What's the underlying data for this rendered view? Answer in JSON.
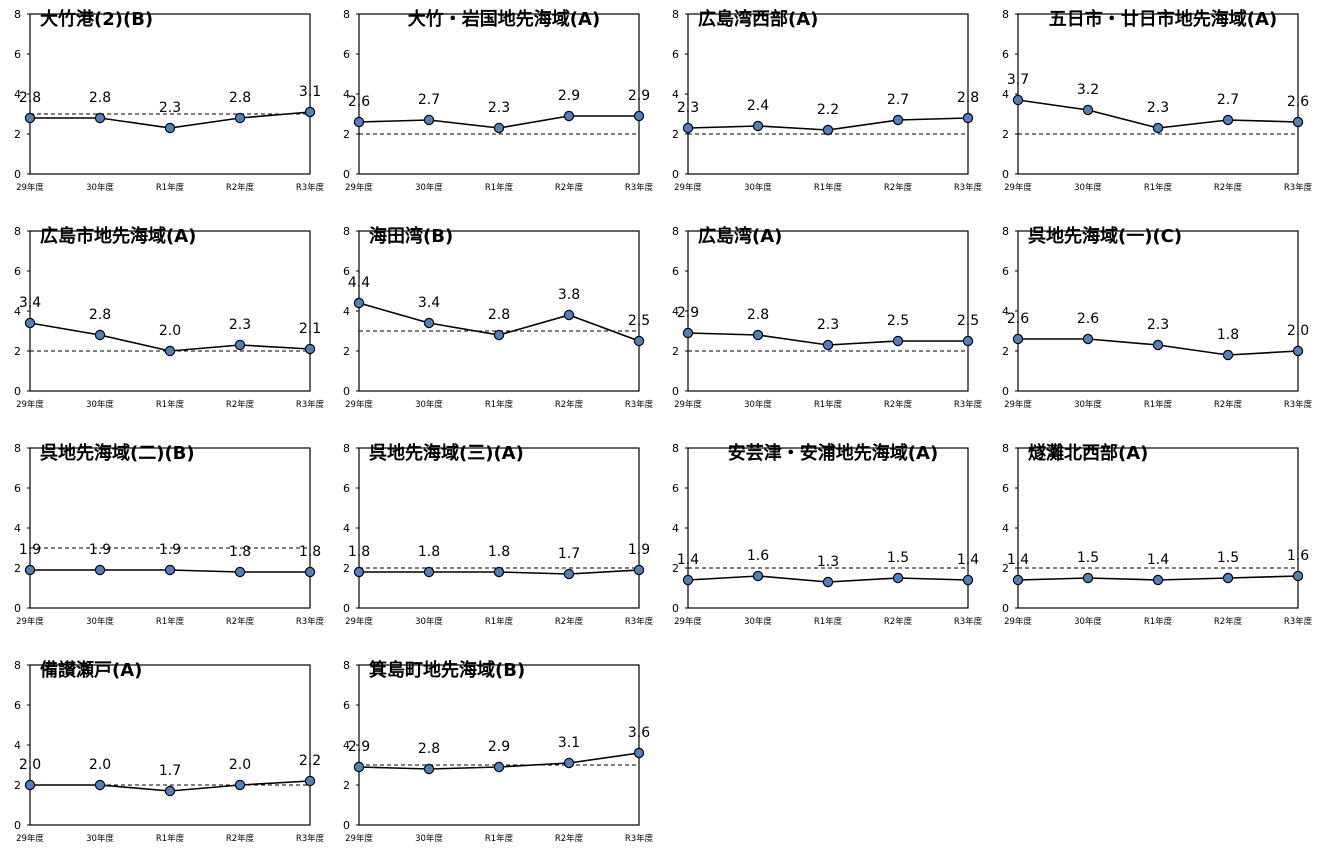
{
  "chart_data": [
    {
      "type": "line",
      "title": "大竹港(2)(B)",
      "categories": [
        "29年度",
        "30年度",
        "R1年度",
        "R2年度",
        "R3年度"
      ],
      "values": [
        2.8,
        2.8,
        2.3,
        2.8,
        3.1
      ],
      "labels": [
        "2.8",
        "2.8",
        "2.3",
        "2.8",
        "3.1"
      ],
      "standard": 3,
      "ylim": [
        0,
        8
      ],
      "yticks": [
        "0",
        "2",
        "4",
        "6",
        "8"
      ]
    },
    {
      "type": "line",
      "title": "大竹・岩国地先海域(A)",
      "categories": [
        "29年度",
        "30年度",
        "R1年度",
        "R2年度",
        "R3年度"
      ],
      "values": [
        2.6,
        2.7,
        2.3,
        2.9,
        2.9
      ],
      "labels": [
        "2.6",
        "2.7",
        "2.3",
        "2.9",
        "2.9"
      ],
      "standard": 2,
      "ylim": [
        0,
        8
      ],
      "yticks": [
        "0",
        "2",
        "4",
        "6",
        "8"
      ]
    },
    {
      "type": "line",
      "title": "広島湾西部(A)",
      "categories": [
        "29年度",
        "30年度",
        "R1年度",
        "R2年度",
        "R3年度"
      ],
      "values": [
        2.3,
        2.4,
        2.2,
        2.7,
        2.8
      ],
      "labels": [
        "2.3",
        "2.4",
        "2.2",
        "2.7",
        "2.8"
      ],
      "standard": 2,
      "ylim": [
        0,
        8
      ],
      "yticks": [
        "0",
        "2",
        "4",
        "6",
        "8"
      ]
    },
    {
      "type": "line",
      "title": "五日市・廿日市地先海域(A)",
      "categories": [
        "29年度",
        "30年度",
        "R1年度",
        "R2年度",
        "R3年度"
      ],
      "values": [
        3.7,
        3.2,
        2.3,
        2.7,
        2.6
      ],
      "labels": [
        "3.7",
        "3.2",
        "2.3",
        "2.7",
        "2.6"
      ],
      "standard": 2,
      "ylim": [
        0,
        8
      ],
      "yticks": [
        "0",
        "2",
        "4",
        "6",
        "8"
      ]
    },
    {
      "type": "line",
      "title": "広島市地先海域(A)",
      "categories": [
        "29年度",
        "30年度",
        "R1年度",
        "R2年度",
        "R3年度"
      ],
      "values": [
        3.4,
        2.8,
        2.0,
        2.3,
        2.1
      ],
      "labels": [
        "3.4",
        "2.8",
        "2.0",
        "2.3",
        "2.1"
      ],
      "standard": 2,
      "ylim": [
        0,
        8
      ],
      "yticks": [
        "0",
        "2",
        "4",
        "6",
        "8"
      ]
    },
    {
      "type": "line",
      "title": "海田湾(B)",
      "categories": [
        "29年度",
        "30年度",
        "R1年度",
        "R2年度",
        "R3年度"
      ],
      "values": [
        4.4,
        3.4,
        2.8,
        3.8,
        2.5
      ],
      "labels": [
        "4.4",
        "3.4",
        "2.8",
        "3.8",
        "2.5"
      ],
      "standard": 3,
      "ylim": [
        0,
        8
      ],
      "yticks": [
        "0",
        "2",
        "4",
        "6",
        "8"
      ]
    },
    {
      "type": "line",
      "title": "広島湾(A)",
      "categories": [
        "29年度",
        "30年度",
        "R1年度",
        "R2年度",
        "R3年度"
      ],
      "values": [
        2.9,
        2.8,
        2.3,
        2.5,
        2.5
      ],
      "labels": [
        "2.9",
        "2.8",
        "2.3",
        "2.5",
        "2.5"
      ],
      "standard": 2,
      "ylim": [
        0,
        8
      ],
      "yticks": [
        "0",
        "2",
        "4",
        "6",
        "8"
      ]
    },
    {
      "type": "line",
      "title": "呉地先海域(一)(C)",
      "categories": [
        "29年度",
        "30年度",
        "R1年度",
        "R2年度",
        "R3年度"
      ],
      "values": [
        2.6,
        2.6,
        2.3,
        1.8,
        2.0
      ],
      "labels": [
        "2.6",
        "2.6",
        "2.3",
        "1.8",
        "2.0"
      ],
      "standard": 8,
      "ylim": [
        0,
        8
      ],
      "yticks": [
        "0",
        "2",
        "4",
        "6",
        "8"
      ]
    },
    {
      "type": "line",
      "title": "呉地先海域(二)(B)",
      "categories": [
        "29年度",
        "30年度",
        "R1年度",
        "R2年度",
        "R3年度"
      ],
      "values": [
        1.9,
        1.9,
        1.9,
        1.8,
        1.8
      ],
      "labels": [
        "1.9",
        "1.9",
        "1.9",
        "1.8",
        "1.8"
      ],
      "standard": 3,
      "ylim": [
        0,
        8
      ],
      "yticks": [
        "0",
        "2",
        "4",
        "6",
        "8"
      ]
    },
    {
      "type": "line",
      "title": "呉地先海域(三)(A)",
      "categories": [
        "29年度",
        "30年度",
        "R1年度",
        "R2年度",
        "R3年度"
      ],
      "values": [
        1.8,
        1.8,
        1.8,
        1.7,
        1.9
      ],
      "labels": [
        "1.8",
        "1.8",
        "1.8",
        "1.7",
        "1.9"
      ],
      "standard": 2,
      "ylim": [
        0,
        8
      ],
      "yticks": [
        "0",
        "2",
        "4",
        "6",
        "8"
      ]
    },
    {
      "type": "line",
      "title": "安芸津・安浦地先海域(A)",
      "categories": [
        "29年度",
        "30年度",
        "R1年度",
        "R2年度",
        "R3年度"
      ],
      "values": [
        1.4,
        1.6,
        1.3,
        1.5,
        1.4
      ],
      "labels": [
        "1.4",
        "1.6",
        "1.3",
        "1.5",
        "1.4"
      ],
      "standard": 2,
      "ylim": [
        0,
        8
      ],
      "yticks": [
        "0",
        "2",
        "4",
        "6",
        "8"
      ]
    },
    {
      "type": "line",
      "title": "燧灘北西部(A)",
      "categories": [
        "29年度",
        "30年度",
        "R1年度",
        "R2年度",
        "R3年度"
      ],
      "values": [
        1.4,
        1.5,
        1.4,
        1.5,
        1.6
      ],
      "labels": [
        "1.4",
        "1.5",
        "1.4",
        "1.5",
        "1.6"
      ],
      "standard": 2,
      "ylim": [
        0,
        8
      ],
      "yticks": [
        "0",
        "2",
        "4",
        "6",
        "8"
      ]
    },
    {
      "type": "line",
      "title": "備讃瀬戸(A)",
      "categories": [
        "29年度",
        "30年度",
        "R1年度",
        "R2年度",
        "R3年度"
      ],
      "values": [
        2.0,
        2.0,
        1.7,
        2.0,
        2.2
      ],
      "labels": [
        "2.0",
        "2.0",
        "1.7",
        "2.0",
        "2.2"
      ],
      "standard": 2,
      "ylim": [
        0,
        8
      ],
      "yticks": [
        "0",
        "2",
        "4",
        "6",
        "8"
      ]
    },
    {
      "type": "line",
      "title": "箕島町地先海域(B)",
      "categories": [
        "29年度",
        "30年度",
        "R1年度",
        "R2年度",
        "R3年度"
      ],
      "values": [
        2.9,
        2.8,
        2.9,
        3.1,
        3.6
      ],
      "labels": [
        "2.9",
        "2.8",
        "2.9",
        "3.1",
        "3.6"
      ],
      "standard": 3,
      "ylim": [
        0,
        8
      ],
      "yticks": [
        "0",
        "2",
        "4",
        "6",
        "8"
      ]
    }
  ],
  "colors": {
    "marker_fill": "#4f81bd",
    "line": "#000000",
    "standard_line": "#000000"
  }
}
